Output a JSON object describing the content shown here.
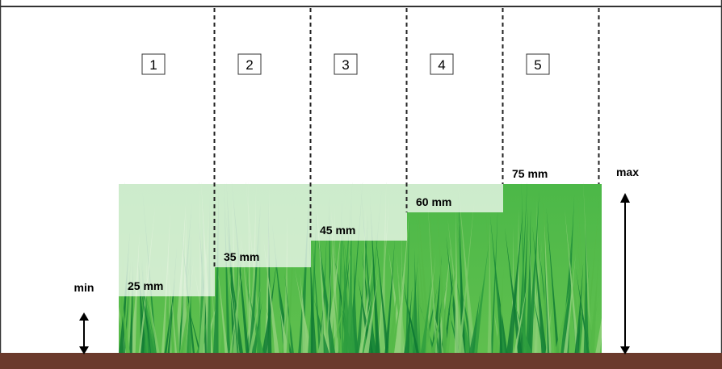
{
  "columns": [
    {
      "number": "1",
      "height": "25 mm"
    },
    {
      "number": "2",
      "height": "35 mm"
    },
    {
      "number": "3",
      "height": "45 mm"
    },
    {
      "number": "4",
      "height": "60 mm"
    },
    {
      "number": "5",
      "height": "75 mm"
    }
  ],
  "labels": {
    "min": "min",
    "max": "max"
  }
}
